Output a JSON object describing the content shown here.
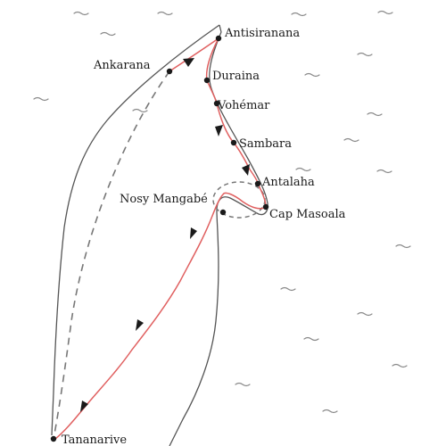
{
  "places": {
    "antsiranana": "Antisiranana",
    "ankarana": "Ankarana",
    "duraina": "Duraina",
    "vohemar": "Vohémar",
    "sambara": "Sambara",
    "antalaha": "Antalaha",
    "nosy_mangabe": "Nosy Mangabé",
    "cap_masoala": "Cap Masoala",
    "tananarive": "Tananarive"
  },
  "colors": {
    "coast": "#555555",
    "route": "#e06060",
    "dashed_route": "#777777",
    "waves": "#8a8a8a",
    "points": "#1a1a1a"
  },
  "icons": {
    "wave": "wave-icon",
    "arrow": "arrow-icon",
    "point": "location-dot-icon"
  }
}
